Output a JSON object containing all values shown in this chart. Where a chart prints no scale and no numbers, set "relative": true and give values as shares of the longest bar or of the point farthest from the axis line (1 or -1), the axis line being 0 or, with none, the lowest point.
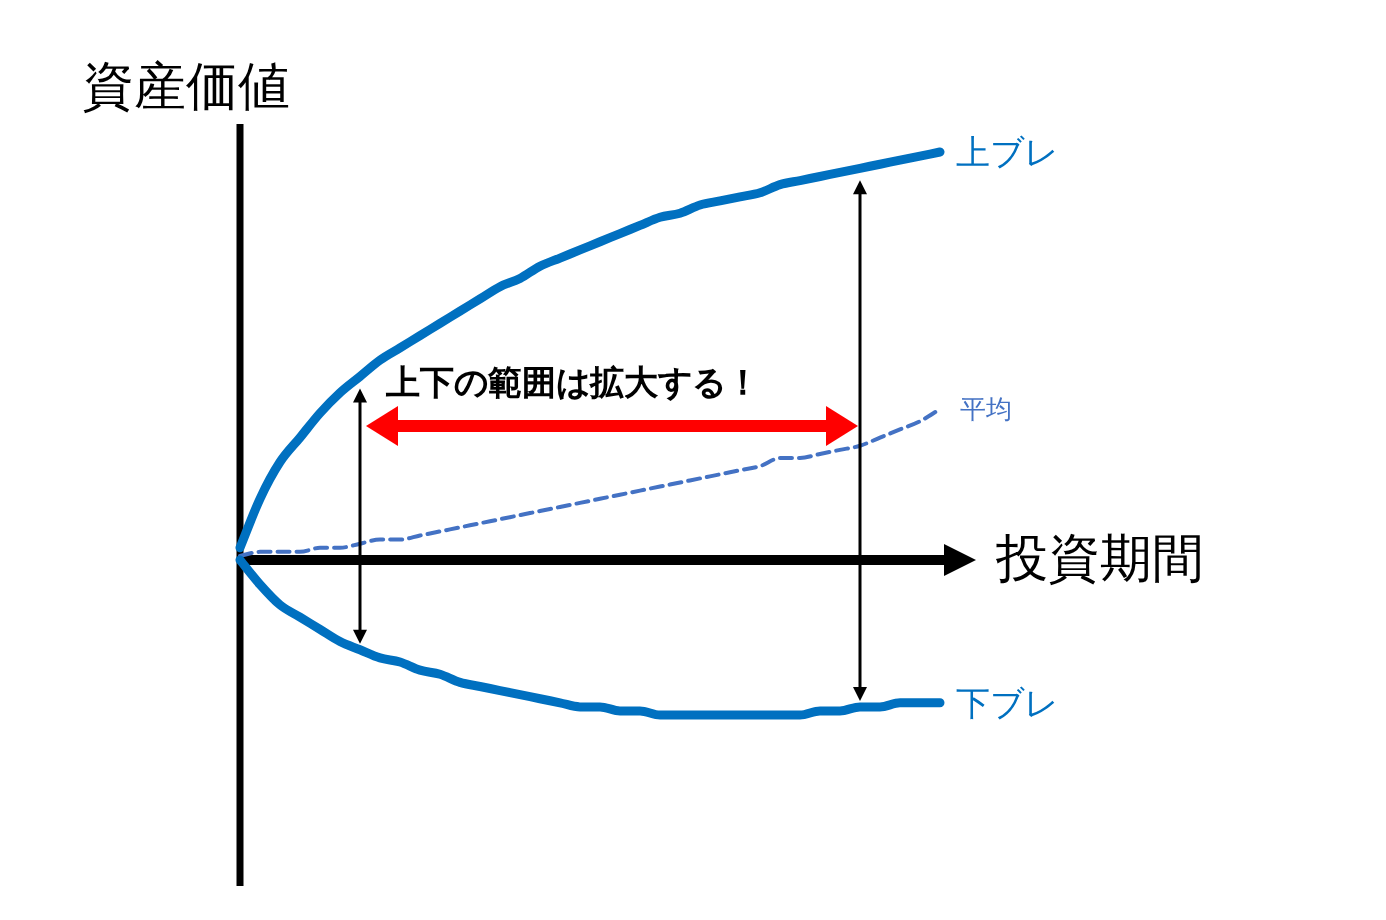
{
  "chart_data": {
    "type": "line",
    "relative": true,
    "xlabel": "投資期間",
    "ylabel": "資産価値",
    "annotations": [
      "上下の範囲は拡大する！"
    ],
    "categories": [
      null,
      null,
      null,
      null,
      null,
      null,
      null,
      null,
      null,
      null,
      null,
      null,
      null,
      null,
      null,
      null,
      null,
      null,
      null,
      null,
      null,
      null,
      null,
      null,
      null,
      null,
      null,
      null,
      null,
      null,
      null,
      null,
      null,
      null,
      null,
      null
    ],
    "series": [
      {
        "name": "上ブレ",
        "color": "#0070c0",
        "values": [
          0.03,
          0.15,
          0.24,
          0.3,
          0.36,
          0.41,
          0.45,
          0.49,
          0.52,
          0.55,
          0.58,
          0.61,
          0.64,
          0.67,
          0.69,
          0.72,
          0.74,
          0.76,
          0.78,
          0.8,
          0.82,
          0.84,
          0.85,
          0.87,
          0.88,
          0.89,
          0.9,
          0.92,
          0.93,
          0.94,
          0.95,
          0.96,
          0.97,
          0.98,
          0.99,
          1.0
        ]
      },
      {
        "name": "平均",
        "color": "#4472c4",
        "line_style": "dashed",
        "values": [
          0.01,
          0.02,
          0.02,
          0.02,
          0.03,
          0.03,
          0.04,
          0.05,
          0.05,
          0.06,
          0.07,
          0.08,
          0.09,
          0.1,
          0.11,
          0.12,
          0.13,
          0.14,
          0.15,
          0.16,
          0.17,
          0.18,
          0.19,
          0.2,
          0.21,
          0.22,
          0.23,
          0.25,
          0.25,
          0.26,
          0.27,
          0.28,
          0.3,
          0.32,
          0.34,
          0.37
        ]
      },
      {
        "name": "下ブレ",
        "color": "#0070c0",
        "values": [
          0,
          -0.06,
          -0.11,
          -0.14,
          -0.17,
          -0.2,
          -0.22,
          -0.24,
          -0.25,
          -0.27,
          -0.28,
          -0.3,
          -0.31,
          -0.32,
          -0.33,
          -0.34,
          -0.35,
          -0.36,
          -0.36,
          -0.37,
          -0.37,
          -0.38,
          -0.38,
          -0.38,
          -0.38,
          -0.38,
          -0.38,
          -0.38,
          -0.38,
          -0.37,
          -0.37,
          -0.36,
          -0.36,
          -0.35,
          -0.35,
          -0.35
        ]
      }
    ]
  }
}
